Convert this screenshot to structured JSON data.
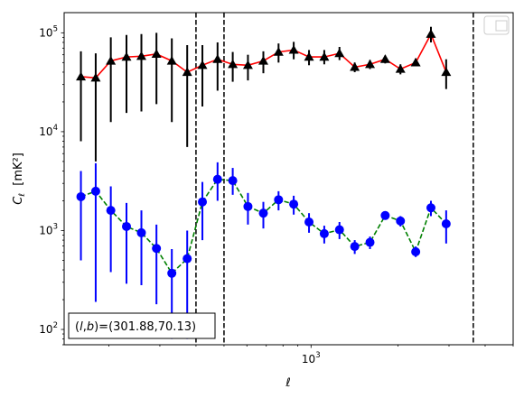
{
  "chart_data": {
    "type": "scatter",
    "xscale": "log",
    "yscale": "log",
    "xlim": [
      140,
      5000
    ],
    "ylim": [
      70,
      160000
    ],
    "xlabel": "ℓ",
    "ylabel": "C_ℓ  [mK²]",
    "x_ticks": [
      {
        "value": 1000,
        "label": "10",
        "exp": "3"
      }
    ],
    "y_ticks": [
      {
        "value": 100,
        "label": "10",
        "exp": "2"
      },
      {
        "value": 1000,
        "label": "10",
        "exp": "3"
      },
      {
        "value": 10000,
        "label": "10",
        "exp": "4"
      },
      {
        "value": 100000,
        "label": "10",
        "exp": "5"
      }
    ],
    "legend": {
      "placement": "top-right",
      "entries": []
    },
    "annotation": {
      "text": "(l,b)=(301.88,70.13)",
      "placement": "bottom-left"
    },
    "vlines": [
      400,
      500,
      3640
    ],
    "series": [
      {
        "color": "#000000",
        "line_color": "#ff0000",
        "line_style": "solid",
        "marker": "triangle",
        "points": [
          {
            "x": 160,
            "y": 36000,
            "lo": 8000,
            "hi": 65000
          },
          {
            "x": 180,
            "y": 35000,
            "lo": 5000,
            "hi": 62000
          },
          {
            "x": 203,
            "y": 52000,
            "lo": 12500,
            "hi": 90000
          },
          {
            "x": 230,
            "y": 57000,
            "lo": 15500,
            "hi": 95000
          },
          {
            "x": 259,
            "y": 58000,
            "lo": 16000,
            "hi": 97000
          },
          {
            "x": 292,
            "y": 61000,
            "lo": 19000,
            "hi": 100000
          },
          {
            "x": 330,
            "y": 52000,
            "lo": 12500,
            "hi": 88000
          },
          {
            "x": 373,
            "y": 40000,
            "lo": 7000,
            "hi": 75000
          },
          {
            "x": 421,
            "y": 47000,
            "lo": 18000,
            "hi": 75000
          },
          {
            "x": 475,
            "y": 54000,
            "lo": 26000,
            "hi": 80000
          },
          {
            "x": 536,
            "y": 48000,
            "lo": 32000,
            "hi": 64000
          },
          {
            "x": 605,
            "y": 47000,
            "lo": 33000,
            "hi": 60000
          },
          {
            "x": 684,
            "y": 52000,
            "lo": 39000,
            "hi": 65000
          },
          {
            "x": 772,
            "y": 64000,
            "lo": 50000,
            "hi": 78000
          },
          {
            "x": 871,
            "y": 67000,
            "lo": 54000,
            "hi": 81000
          },
          {
            "x": 984,
            "y": 57000,
            "lo": 47000,
            "hi": 67000
          },
          {
            "x": 1111,
            "y": 57000,
            "lo": 48000,
            "hi": 67000
          },
          {
            "x": 1254,
            "y": 62000,
            "lo": 53000,
            "hi": 72000
          },
          {
            "x": 1416,
            "y": 45000,
            "lo": 40000,
            "hi": 50000
          },
          {
            "x": 1599,
            "y": 48000,
            "lo": 43000,
            "hi": 53000
          },
          {
            "x": 1805,
            "y": 54000,
            "lo": 49000,
            "hi": 59000
          },
          {
            "x": 2038,
            "y": 43000,
            "lo": 38000,
            "hi": 48000
          },
          {
            "x": 2301,
            "y": 50000,
            "lo": 46000,
            "hi": 55000
          },
          {
            "x": 2598,
            "y": 97000,
            "lo": 80000,
            "hi": 115000
          },
          {
            "x": 2933,
            "y": 40000,
            "lo": 27000,
            "hi": 54000
          }
        ]
      },
      {
        "color": "#0000ff",
        "line_color": "#008000",
        "line_style": "dashed",
        "marker": "circle",
        "points": [
          {
            "x": 160,
            "y": 2200,
            "lo": 500,
            "hi": 4000
          },
          {
            "x": 180,
            "y": 2500,
            "lo": 190,
            "hi": 4800
          },
          {
            "x": 203,
            "y": 1600,
            "lo": 380,
            "hi": 2800
          },
          {
            "x": 230,
            "y": 1100,
            "lo": 290,
            "hi": 1900
          },
          {
            "x": 259,
            "y": 950,
            "lo": 280,
            "hi": 1600
          },
          {
            "x": 292,
            "y": 660,
            "lo": 180,
            "hi": 1150
          },
          {
            "x": 330,
            "y": 370,
            "lo": 80,
            "hi": 650
          },
          {
            "x": 373,
            "y": 520,
            "lo": 80,
            "hi": 1000
          },
          {
            "x": 421,
            "y": 1950,
            "lo": 800,
            "hi": 3100
          },
          {
            "x": 475,
            "y": 3300,
            "lo": 2000,
            "hi": 4900
          },
          {
            "x": 536,
            "y": 3200,
            "lo": 2300,
            "hi": 4300
          },
          {
            "x": 605,
            "y": 1750,
            "lo": 1150,
            "hi": 2400
          },
          {
            "x": 684,
            "y": 1500,
            "lo": 1050,
            "hi": 1950
          },
          {
            "x": 772,
            "y": 2050,
            "lo": 1600,
            "hi": 2500
          },
          {
            "x": 871,
            "y": 1850,
            "lo": 1450,
            "hi": 2250
          },
          {
            "x": 984,
            "y": 1220,
            "lo": 950,
            "hi": 1500
          },
          {
            "x": 1111,
            "y": 930,
            "lo": 740,
            "hi": 1120
          },
          {
            "x": 1254,
            "y": 1020,
            "lo": 820,
            "hi": 1220
          },
          {
            "x": 1416,
            "y": 690,
            "lo": 580,
            "hi": 800
          },
          {
            "x": 1599,
            "y": 760,
            "lo": 650,
            "hi": 870
          },
          {
            "x": 1805,
            "y": 1420,
            "lo": 1300,
            "hi": 1540
          },
          {
            "x": 2038,
            "y": 1250,
            "lo": 1100,
            "hi": 1400
          },
          {
            "x": 2301,
            "y": 610,
            "lo": 540,
            "hi": 690
          },
          {
            "x": 2598,
            "y": 1700,
            "lo": 1400,
            "hi": 2000
          },
          {
            "x": 2933,
            "y": 1170,
            "lo": 740,
            "hi": 1600
          }
        ]
      }
    ]
  }
}
